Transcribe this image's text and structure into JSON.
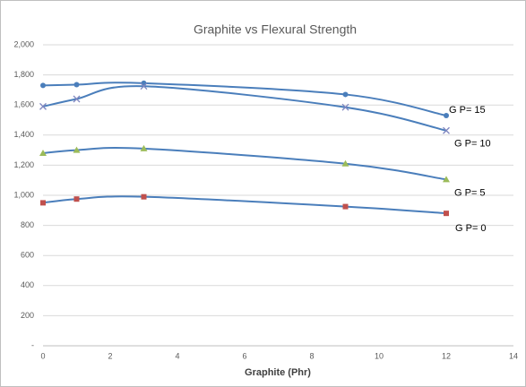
{
  "chart_data": {
    "type": "line",
    "title": "Graphite vs Flexural Strength",
    "x_label": "Graphite (Phr)",
    "x": [
      0,
      1,
      3,
      9,
      12
    ],
    "series": [
      {
        "name": "G P= 15",
        "color": "#4a7ebb",
        "marker": "circle",
        "marker_color": "#4a7ebb",
        "values": [
          1730,
          1735,
          1745,
          1670,
          1530
        ]
      },
      {
        "name": "G P= 10",
        "color": "#4a7ebb",
        "marker": "x",
        "marker_color": "#7f86c0",
        "values": [
          1590,
          1640,
          1725,
          1585,
          1430
        ]
      },
      {
        "name": "G P= 5",
        "color": "#4a7ebb",
        "marker": "triangle",
        "marker_color": "#9bbb59",
        "values": [
          1280,
          1300,
          1310,
          1210,
          1105
        ]
      },
      {
        "name": "G P= 0",
        "color": "#4a7ebb",
        "marker": "square",
        "marker_color": "#c0504d",
        "values": [
          950,
          975,
          990,
          925,
          880
        ]
      }
    ],
    "xlim": [
      0,
      14
    ],
    "xticks": [
      0,
      2,
      4,
      6,
      8,
      10,
      12,
      14
    ],
    "ylim": [
      0,
      2000
    ],
    "yticks": [
      {
        "value": 0,
        "label": "-"
      },
      200,
      400,
      600,
      800,
      {
        "value": 1000,
        "label": "1,000"
      },
      {
        "value": 1200,
        "label": "1,200"
      },
      {
        "value": 1400,
        "label": "1,400"
      },
      {
        "value": 1600,
        "label": "1,600"
      },
      {
        "value": 1800,
        "label": "1,800"
      },
      {
        "value": 2000,
        "label": "2,000"
      }
    ],
    "grid": true,
    "smooth": true
  }
}
